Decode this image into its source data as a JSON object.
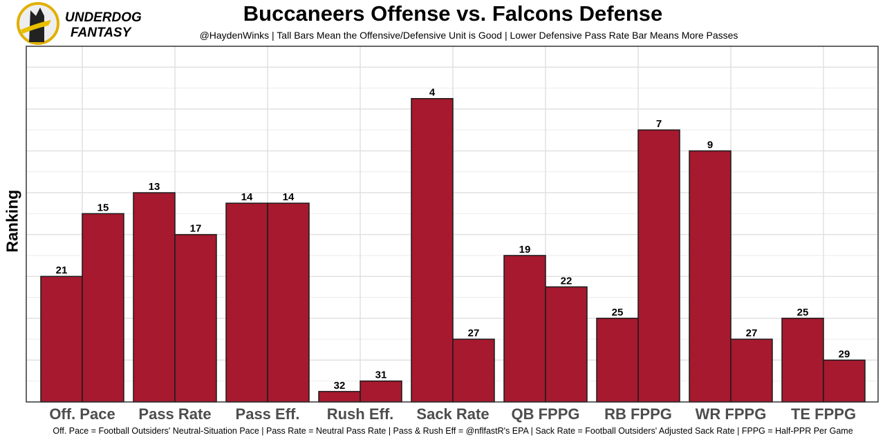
{
  "brand": {
    "line1": "UNDERDOG",
    "line2": "FANTASY"
  },
  "chart_data": {
    "type": "bar",
    "title": "Buccaneers Offense vs. Falcons Defense",
    "subtitle": "@HaydenWinks | Tall Bars Mean the Offensive/Defensive Unit is Good | Lower Defensive Pass Rate Bar Means More Passes",
    "xlabel": "",
    "ylabel": "Ranking",
    "caption": "Off. Pace = Football Outsiders' Neutral-Situation Pace | Pass Rate = Neutral Pass Rate | Pass & Rush Eff = @nflfastR's EPA | Sack Rate = Football Outsiders' Adjusted Sack Rate | FPPG = Half-PPR Per Game",
    "categories": [
      "Off. Pace",
      "Pass Rate",
      "Pass Eff.",
      "Rush Eff.",
      "Sack Rate",
      "QB FPPG",
      "RB FPPG",
      "WR FPPG",
      "TE FPPG"
    ],
    "series": [
      {
        "name": "Buccaneers Offense",
        "ranks": [
          21,
          13,
          14,
          32,
          4,
          19,
          25,
          9,
          25
        ]
      },
      {
        "name": "Falcons Defense",
        "ranks": [
          15,
          17,
          14,
          31,
          27,
          22,
          7,
          27,
          29
        ]
      }
    ],
    "bar_value": "33 - rank",
    "ylim": [
      0,
      34
    ],
    "grid": true,
    "bar_color": "#A6192E"
  }
}
